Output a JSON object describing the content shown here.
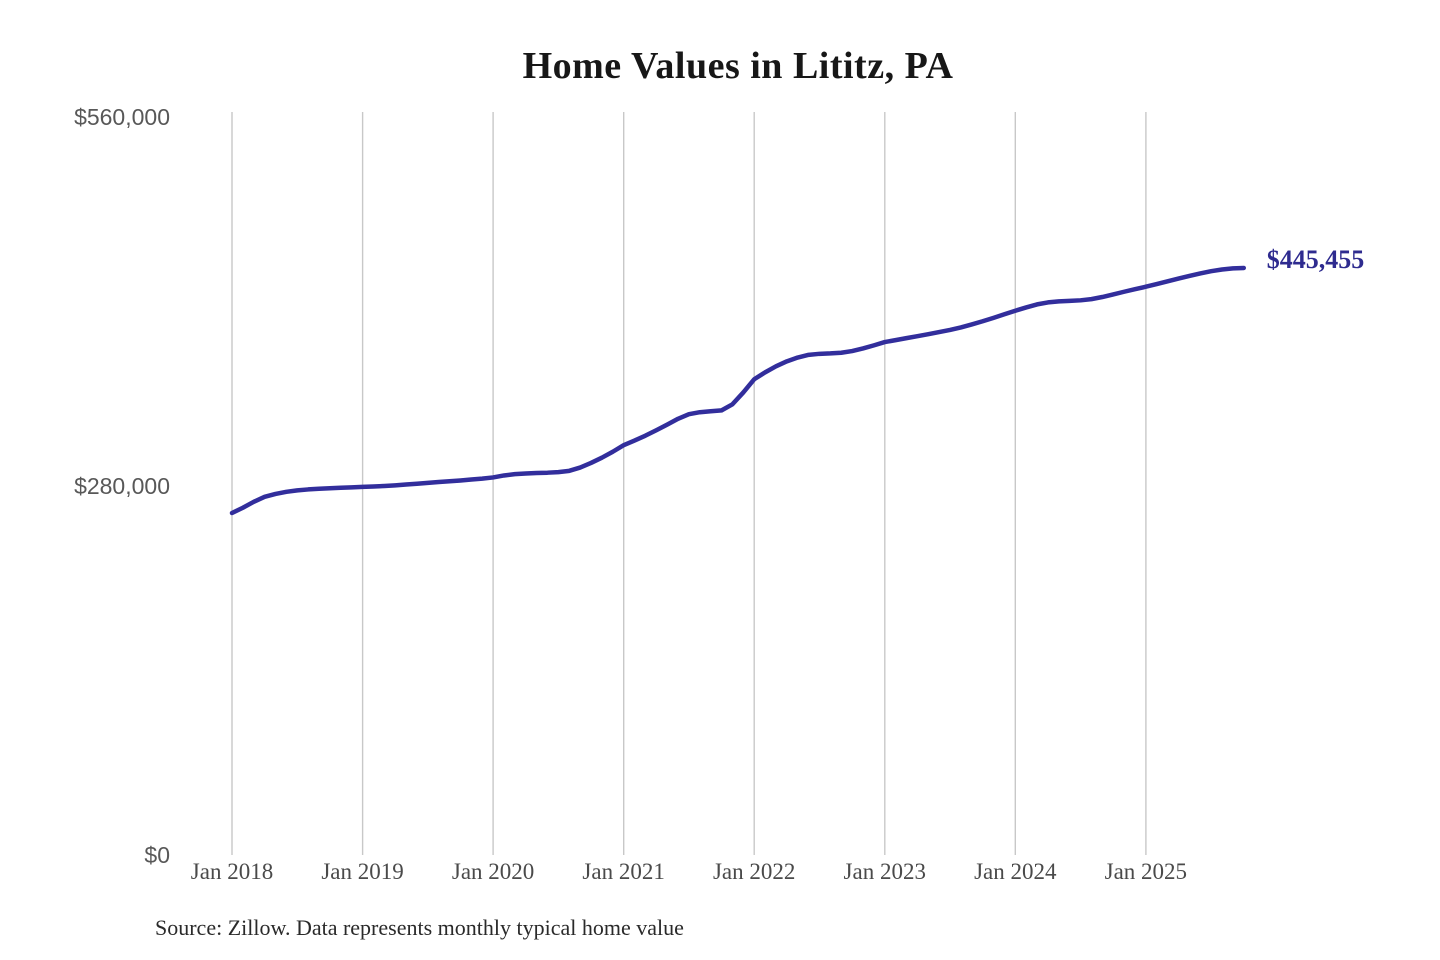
{
  "source_note": "Source: Zillow. Data represents monthly typical home value",
  "chart_data": {
    "type": "line",
    "title": "Home Values in Lititz, PA",
    "series_name": "Typical home value",
    "x_start": "Jan 2018",
    "x_end": "Oct 2025",
    "x_interval": "monthly",
    "x_tick_labels": [
      "Jan 2018",
      "Jan 2019",
      "Jan 2020",
      "Jan 2021",
      "Jan 2022",
      "Jan 2023",
      "Jan 2024",
      "Jan 2025"
    ],
    "y_ticks": [
      0,
      280000,
      560000
    ],
    "y_tick_labels": [
      "$0",
      "$280,000",
      "$560,000"
    ],
    "ylim": [
      0,
      560000
    ],
    "grid": "vertical-only",
    "legend": "none",
    "line_color": "#322e9c",
    "grid_color": "#c8c8c8",
    "end_label": "$445,455",
    "end_value": 445455,
    "values": [
      259500,
      263500,
      268000,
      271800,
      274000,
      275600,
      276700,
      277400,
      277900,
      278300,
      278700,
      279000,
      279300,
      279600,
      280000,
      280500,
      281100,
      281700,
      282400,
      283000,
      283600,
      284200,
      284900,
      285600,
      286500,
      288000,
      289000,
      289500,
      289900,
      290100,
      290500,
      291500,
      294000,
      297500,
      301500,
      306000,
      311000,
      314500,
      318200,
      322300,
      326600,
      331000,
      334500,
      336000,
      336700,
      337400,
      342000,
      351000,
      361000,
      366200,
      370800,
      374600,
      377500,
      379500,
      380300,
      380600,
      381100,
      382400,
      384400,
      386700,
      389200,
      390700,
      392200,
      393700,
      395200,
      396800,
      398400,
      400300,
      402600,
      405000,
      407600,
      410300,
      413000,
      415500,
      417800,
      419300,
      420100,
      420500,
      420900,
      421800,
      423400,
      425400,
      427400,
      429300,
      431200,
      433200,
      435300,
      437400,
      439400,
      441300,
      443000,
      444300,
      445100,
      445455
    ]
  }
}
